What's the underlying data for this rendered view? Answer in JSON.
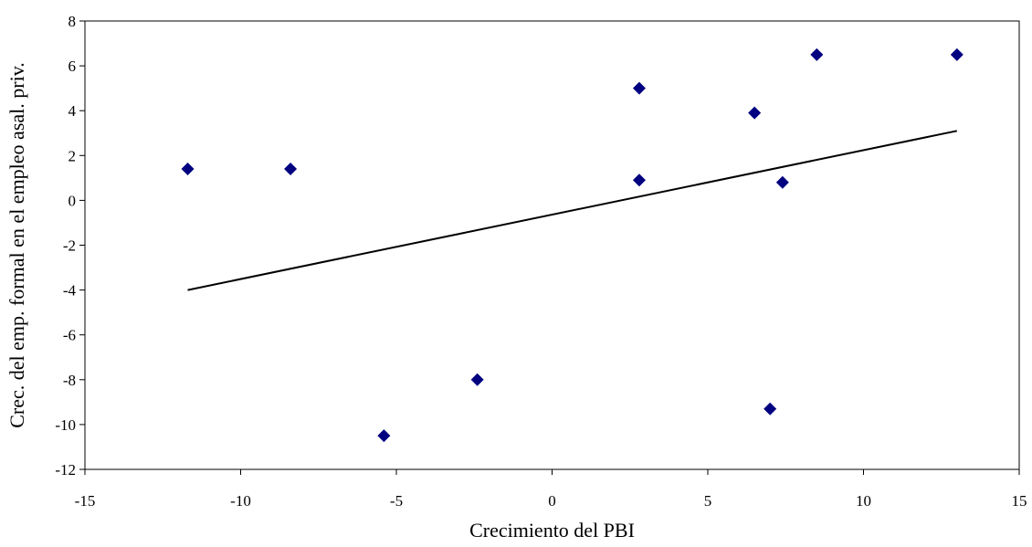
{
  "chart_data": {
    "type": "scatter",
    "title": "",
    "xlabel": "Crecimiento del PBI",
    "ylabel": "Crec. del emp. formal en el empleo asal. priv.",
    "xlim": [
      -15,
      15
    ],
    "ylim": [
      -12,
      8
    ],
    "xticks": [
      -15,
      -10,
      -5,
      0,
      5,
      10,
      15
    ],
    "yticks": [
      -12,
      -10,
      -8,
      -6,
      -4,
      -2,
      0,
      2,
      4,
      6,
      8
    ],
    "grid": false,
    "legend": "none",
    "marker_color": "#000080",
    "marker": "diamond",
    "points": [
      {
        "x": -11.7,
        "y": 1.4
      },
      {
        "x": -8.4,
        "y": 1.4
      },
      {
        "x": -5.4,
        "y": -10.5
      },
      {
        "x": -2.4,
        "y": -8.0
      },
      {
        "x": 2.8,
        "y": 5.0
      },
      {
        "x": 2.8,
        "y": 0.9
      },
      {
        "x": 6.5,
        "y": 3.9
      },
      {
        "x": 7.0,
        "y": -9.3
      },
      {
        "x": 7.4,
        "y": 0.8
      },
      {
        "x": 8.5,
        "y": 6.5
      },
      {
        "x": 13.0,
        "y": 6.5
      }
    ],
    "trendline": {
      "type": "linear",
      "color": "#000000",
      "from": {
        "x": -11.7,
        "y": -4.0
      },
      "to": {
        "x": 13.0,
        "y": 3.1
      }
    }
  }
}
